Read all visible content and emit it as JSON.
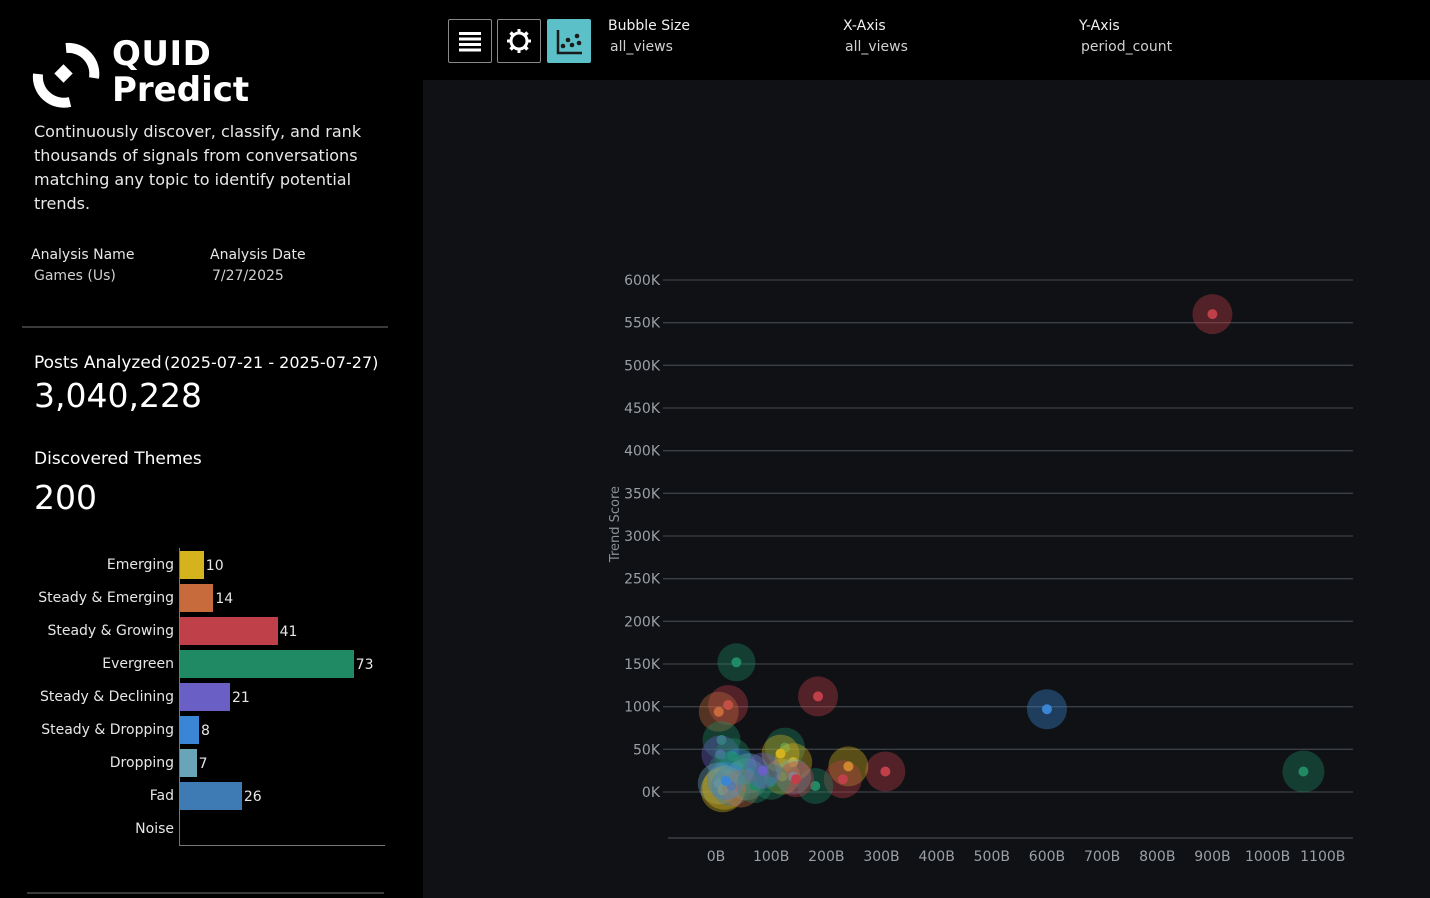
{
  "brand": {
    "line1": "QUID",
    "line2": "Predict"
  },
  "description": "Continuously discover, classify, and rank thousands of signals from conversations matching any topic to identify potential trends.",
  "analysis": {
    "name_label": "Analysis Name",
    "name_value": "Games (Us)",
    "date_label": "Analysis Date",
    "date_value": "7/27/2025"
  },
  "posts": {
    "label": "Posts Analyzed",
    "range": "(2025-07-21 - 2025-07-27)",
    "value": "3,040,228"
  },
  "themes": {
    "label": "Discovered Themes",
    "value": "200"
  },
  "theme_categories": [
    {
      "label": "Emerging",
      "count": "10",
      "color": "#d4b31f"
    },
    {
      "label": "Steady & Emerging",
      "count": "14",
      "color": "#c86b3c"
    },
    {
      "label": "Steady & Growing",
      "count": "41",
      "color": "#c0404a"
    },
    {
      "label": "Evergreen",
      "count": "73",
      "color": "#1f8a64"
    },
    {
      "label": "Steady & Declining",
      "count": "21",
      "color": "#6a5fc4"
    },
    {
      "label": "Steady & Dropping",
      "count": "8",
      "color": "#3a86d4"
    },
    {
      "label": "Dropping",
      "count": "7",
      "color": "#6aa4b8"
    },
    {
      "label": "Fad",
      "count": "26",
      "color": "#3e7bb4"
    },
    {
      "label": "Noise",
      "count": "",
      "color": "#888888"
    }
  ],
  "toolbar": {
    "list_icon": "list-icon",
    "settings_icon": "gear-icon",
    "scatter_icon": "scatter-plot-icon",
    "accent": "#5bc0c8",
    "bubble_size_label": "Bubble Size",
    "bubble_size_value": "all_views",
    "x_axis_label": "X-Axis",
    "x_axis_value": "all_views",
    "y_axis_label": "Y-Axis",
    "y_axis_value": "period_count"
  },
  "chart_data": {
    "type": "scatter",
    "ylabel": "Trend Score",
    "xlabel": "",
    "x_ticks": [
      "0B",
      "100B",
      "200B",
      "300B",
      "400B",
      "500B",
      "600B",
      "700B",
      "800B",
      "900B",
      "1000B",
      "1100B"
    ],
    "y_ticks": [
      "0K",
      "50K",
      "100K",
      "150K",
      "200K",
      "250K",
      "300K",
      "350K",
      "400K",
      "450K",
      "500K",
      "550K",
      "600K"
    ],
    "xlim": [
      0,
      1100
    ],
    "ylim": [
      0,
      600000
    ],
    "grid": true,
    "colors": {
      "Emerging": "#d4b31f",
      "Steady & Emerging": "#c86b3c",
      "Steady & Growing": "#c0404a",
      "Evergreen": "#1f8a64",
      "Steady & Declining": "#6a5fc4",
      "Steady & Dropping": "#3a86d4",
      "Dropping": "#6aa4b8",
      "Fad": "#3e7bb4"
    },
    "points": [
      {
        "x": 900,
        "y": 560000,
        "size": 20,
        "cat": "Steady & Growing"
      },
      {
        "x": 600,
        "y": 97000,
        "size": 20,
        "cat": "Steady & Dropping"
      },
      {
        "x": 1065,
        "y": 24000,
        "size": 21,
        "cat": "Evergreen"
      },
      {
        "x": 37,
        "y": 152000,
        "size": 19,
        "cat": "Evergreen"
      },
      {
        "x": 185,
        "y": 112000,
        "size": 20,
        "cat": "Steady & Growing"
      },
      {
        "x": 22,
        "y": 102000,
        "size": 20,
        "cat": "Steady & Growing"
      },
      {
        "x": 5,
        "y": 94000,
        "size": 20,
        "cat": "Steady & Emerging"
      },
      {
        "x": 307,
        "y": 24000,
        "size": 20,
        "cat": "Steady & Growing"
      },
      {
        "x": 240,
        "y": 30000,
        "size": 20,
        "cat": "Emerging"
      },
      {
        "x": 230,
        "y": 15000,
        "size": 19,
        "cat": "Steady & Growing"
      },
      {
        "x": 180,
        "y": 7000,
        "size": 18,
        "cat": "Evergreen"
      },
      {
        "x": 125,
        "y": 52000,
        "size": 20,
        "cat": "Evergreen"
      },
      {
        "x": 117,
        "y": 45000,
        "size": 19,
        "cat": "Emerging"
      },
      {
        "x": 140,
        "y": 35000,
        "size": 19,
        "cat": "Emerging"
      },
      {
        "x": 120,
        "y": 18000,
        "size": 18,
        "cat": "Emerging"
      },
      {
        "x": 140,
        "y": 18000,
        "size": 18,
        "cat": "Dropping"
      },
      {
        "x": 145,
        "y": 15000,
        "size": 18,
        "cat": "Steady & Growing"
      },
      {
        "x": 10,
        "y": 61000,
        "size": 19,
        "cat": "Evergreen"
      },
      {
        "x": 8,
        "y": 44000,
        "size": 19,
        "cat": "Steady & Declining"
      },
      {
        "x": 30,
        "y": 42000,
        "size": 18,
        "cat": "Evergreen"
      },
      {
        "x": 40,
        "y": 30000,
        "size": 18,
        "cat": "Steady & Dropping"
      },
      {
        "x": 60,
        "y": 22000,
        "size": 20,
        "cat": "Dropping"
      },
      {
        "x": 20,
        "y": 25000,
        "size": 19,
        "cat": "Evergreen"
      },
      {
        "x": 55,
        "y": 15000,
        "size": 21,
        "cat": "Dropping"
      },
      {
        "x": 35,
        "y": 20000,
        "size": 21,
        "cat": "Evergreen"
      },
      {
        "x": 5,
        "y": 10000,
        "size": 21,
        "cat": "Dropping"
      },
      {
        "x": 15,
        "y": 5000,
        "size": 22,
        "cat": "Emerging"
      },
      {
        "x": 12,
        "y": 2000,
        "size": 22,
        "cat": "Emerging"
      },
      {
        "x": 28,
        "y": 7000,
        "size": 20,
        "cat": "Fad"
      },
      {
        "x": 45,
        "y": 4000,
        "size": 19,
        "cat": "Steady & Emerging"
      },
      {
        "x": 70,
        "y": 8000,
        "size": 18,
        "cat": "Evergreen"
      },
      {
        "x": 100,
        "y": 12000,
        "size": 18,
        "cat": "Evergreen"
      },
      {
        "x": 85,
        "y": 25000,
        "size": 18,
        "cat": "Steady & Declining"
      },
      {
        "x": 18,
        "y": 13000,
        "size": 19,
        "cat": "Steady & Dropping"
      }
    ]
  }
}
